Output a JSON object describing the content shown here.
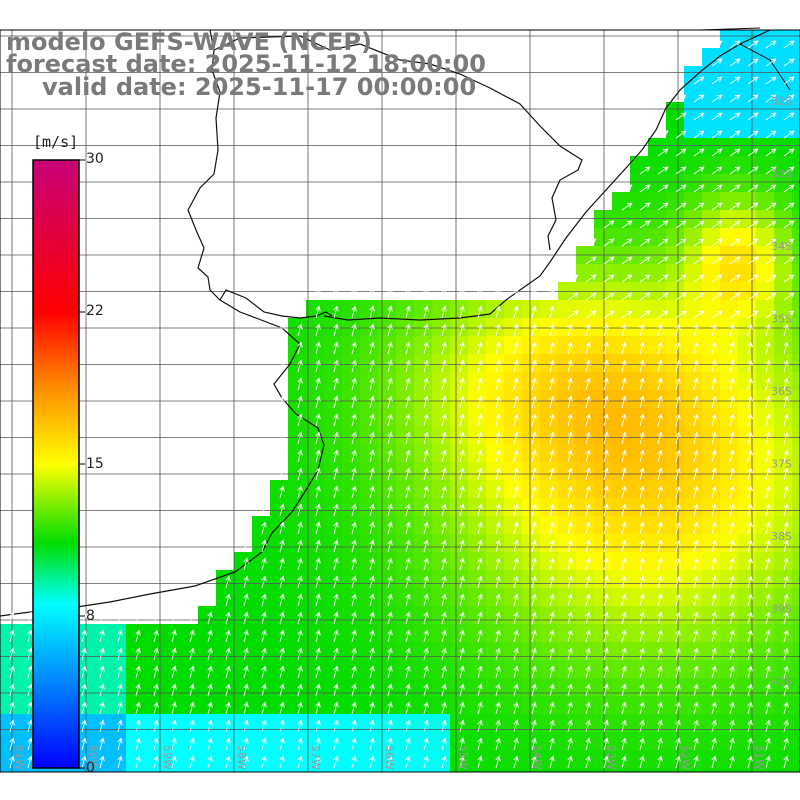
{
  "title": {
    "line1": "modelo GEFS-WAVE (NCEP)",
    "line2": "forecast date: 2025-11-12 18:00:00",
    "line3": "valid date: 2025-11-17 00:00:00"
  },
  "colorbar": {
    "unit": "[m/s]",
    "ticks": [
      {
        "value": "30"
      },
      {
        "value": "22"
      },
      {
        "value": "15"
      },
      {
        "value": "8"
      },
      {
        "value": "0"
      }
    ],
    "colors": [
      "#0000ff",
      "#00ffff",
      "#00dd00",
      "#ffff00",
      "#ff8800",
      "#ff0000",
      "#c80078"
    ]
  },
  "map": {
    "lat_labels": [
      "32S",
      "33S",
      "34S",
      "35S",
      "36S",
      "37S",
      "38S",
      "39S",
      "40S"
    ],
    "lon_labels": [
      "61W",
      "60W",
      "59W",
      "58W",
      "57W",
      "56W",
      "55W",
      "54W",
      "53W",
      "52W",
      "51W",
      "50W"
    ],
    "field": "wind speed at 10 m",
    "arrow_direction": "north-northeast"
  }
}
